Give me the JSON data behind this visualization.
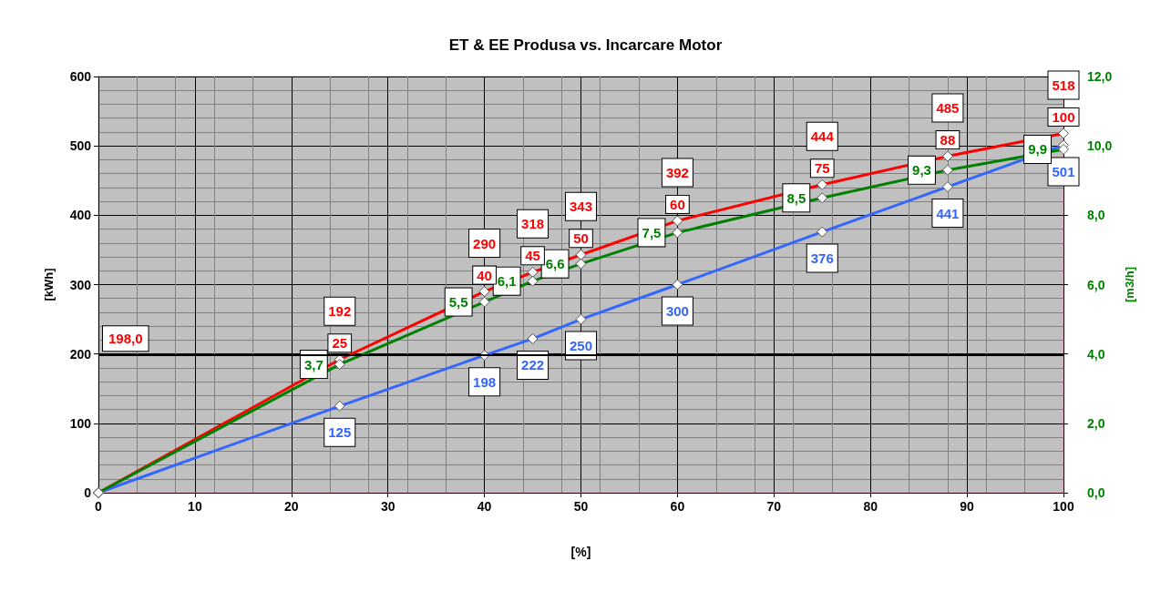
{
  "chart_data": {
    "type": "line",
    "title": "ET & EE Produsa vs. Incarcare Motor",
    "xlabel": "[%]",
    "ylabel": "[kWh]",
    "y2label": "[m3/h]",
    "x": [
      0,
      25,
      40,
      45,
      50,
      60,
      75,
      88,
      100
    ],
    "series": [
      {
        "color": "#ff0000",
        "values": [
          0,
          192,
          290,
          318,
          343,
          392,
          444,
          485,
          518
        ],
        "value_labels": [
          null,
          "192",
          "290",
          "318",
          "343",
          "392",
          "444",
          "485",
          "518"
        ]
      },
      {
        "color": "#3366ff",
        "values": [
          0,
          125,
          198,
          222,
          250,
          300,
          376,
          441,
          501
        ],
        "value_labels": [
          null,
          "125",
          "198",
          "222",
          "250",
          "300",
          "376",
          "441",
          "501"
        ]
      },
      {
        "color": "#008000",
        "axis": "y2",
        "values": [
          0,
          3.7,
          5.5,
          6.1,
          6.6,
          7.5,
          8.5,
          9.3,
          9.9
        ],
        "value_labels": [
          null,
          "3,7",
          "5,5",
          "6,1",
          "6,6",
          "7,5",
          "8,5",
          "9,3",
          "9,9"
        ]
      }
    ],
    "xlim": [
      0,
      100
    ],
    "xticks": [
      0,
      10,
      20,
      30,
      40,
      50,
      60,
      70,
      80,
      90,
      100
    ],
    "ylim": [
      0,
      600
    ],
    "yticks": [
      0,
      100,
      200,
      300,
      400,
      500,
      600
    ],
    "y2lim": [
      0,
      12
    ],
    "y2ticks": [
      {
        "value": 0,
        "label": "0,0"
      },
      {
        "value": 2,
        "label": "2,0"
      },
      {
        "value": 4,
        "label": "4,0"
      },
      {
        "value": 6,
        "label": "6,0"
      },
      {
        "value": 8,
        "label": "8,0"
      },
      {
        "value": 10,
        "label": "10,0"
      },
      {
        "value": 12,
        "label": "12,0"
      }
    ],
    "ref_lines": [
      {
        "axis": "y",
        "value": 198,
        "label": "198,0",
        "color": "#000000"
      }
    ],
    "annotations": [
      {
        "text": "25",
        "x": 25,
        "y": 192
      },
      {
        "text": "40",
        "x": 40,
        "y": 290
      },
      {
        "text": "45",
        "x": 45,
        "y": 318
      },
      {
        "text": "50",
        "x": 50,
        "y": 343
      },
      {
        "text": "60",
        "x": 60,
        "y": 392
      },
      {
        "text": "75",
        "x": 75,
        "y": 444
      },
      {
        "text": "88",
        "x": 88,
        "y": 485
      },
      {
        "text": "100",
        "x": 100,
        "y": 518
      }
    ],
    "grid": true,
    "marker": "diamond",
    "line_style": "solid"
  }
}
